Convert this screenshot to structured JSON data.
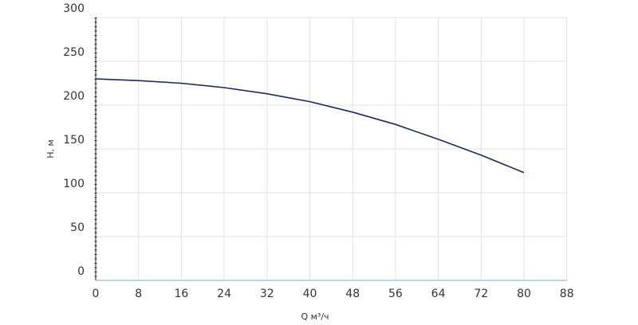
{
  "chart_data": {
    "type": "line",
    "x_label": "Q м³/ч",
    "y_label": "H, м",
    "x": [
      0,
      8,
      16,
      24,
      32,
      40,
      48,
      56,
      64,
      72,
      80
    ],
    "series": [
      {
        "color": "#1b2a5c",
        "values": [
          230,
          228,
          225,
          220,
          213,
          204,
          192,
          178,
          161,
          143,
          123
        ]
      }
    ],
    "xlim": [
      0,
      88
    ],
    "xticks": [
      0,
      8,
      16,
      24,
      32,
      40,
      48,
      56,
      64,
      72,
      80,
      88
    ],
    "ylim": [
      0,
      300
    ],
    "yticks": [
      0,
      50,
      100,
      150,
      200,
      250,
      300
    ],
    "grid": true
  }
}
